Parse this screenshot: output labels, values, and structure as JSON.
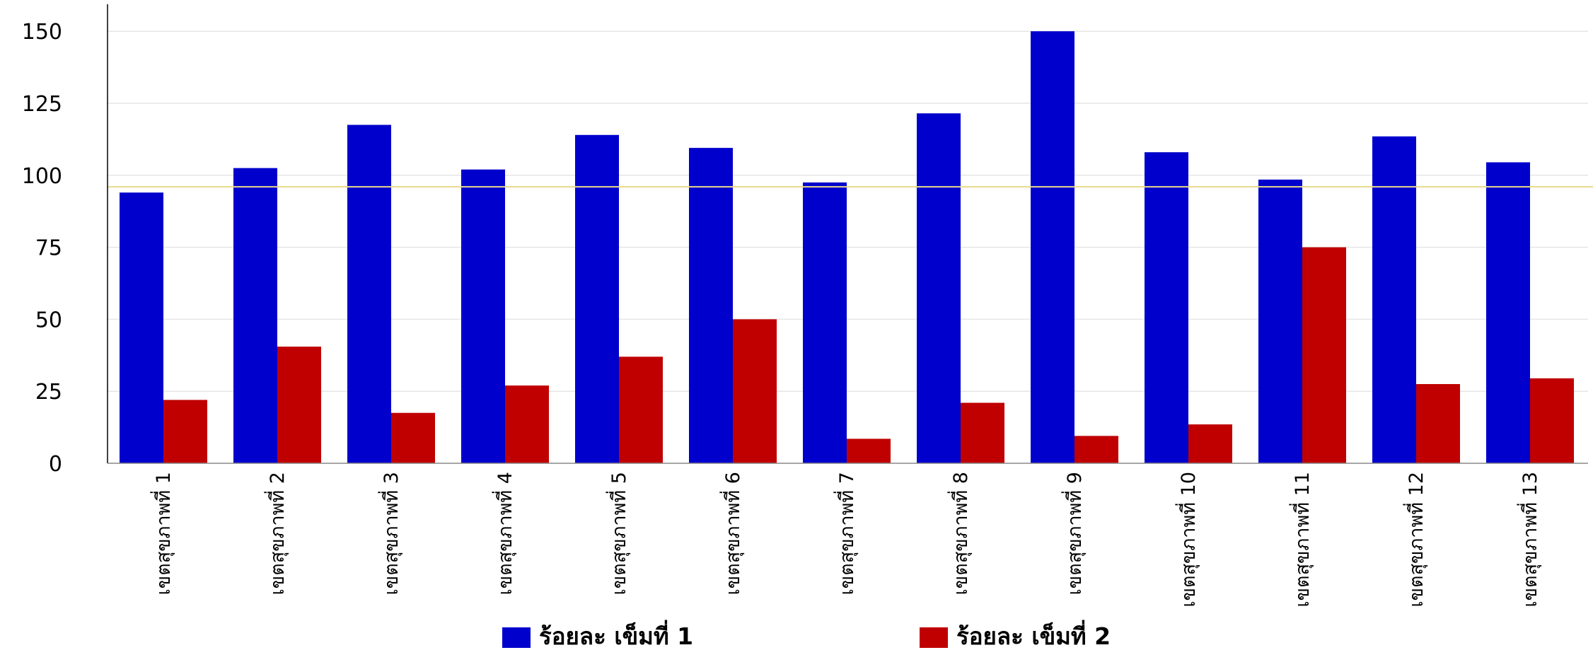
{
  "chart_data": {
    "type": "bar",
    "categories": [
      "เขตสุขภาพที่ 1",
      "เขตสุขภาพที่ 2",
      "เขตสุขภาพที่ 3",
      "เขตสุขภาพที่ 4",
      "เขตสุขภาพที่ 5",
      "เขตสุขภาพที่ 6",
      "เขตสุขภาพที่ 7",
      "เขตสุขภาพที่ 8",
      "เขตสุขภาพที่ 9",
      "เขตสุขภาพที่ 10",
      "เขตสุขภาพที่ 11",
      "เขตสุขภาพที่ 12",
      "เขตสุขภาพที่ 13"
    ],
    "series": [
      {
        "name": "ร้อยละ เข็มที่ 1",
        "color": "#0000cc",
        "values": [
          94,
          102.5,
          117.5,
          102,
          114,
          109.5,
          97.5,
          121.5,
          150,
          108,
          98.5,
          113.5,
          104.5
        ]
      },
      {
        "name": "ร้อยละ เข็มที่ 2",
        "color": "#c00000",
        "values": [
          22,
          40.5,
          17.5,
          27,
          37,
          50,
          8.5,
          21,
          9.5,
          13.5,
          75,
          27.5,
          29.5
        ]
      }
    ],
    "yticks": [
      0,
      25,
      50,
      75,
      100,
      125,
      150
    ],
    "ylim": [
      0,
      160
    ],
    "reference_line": {
      "value": 96,
      "color": "#e8d98a"
    },
    "grid": true,
    "gridline_color": "#e6e6e6",
    "legend_position": "bottom-center"
  }
}
